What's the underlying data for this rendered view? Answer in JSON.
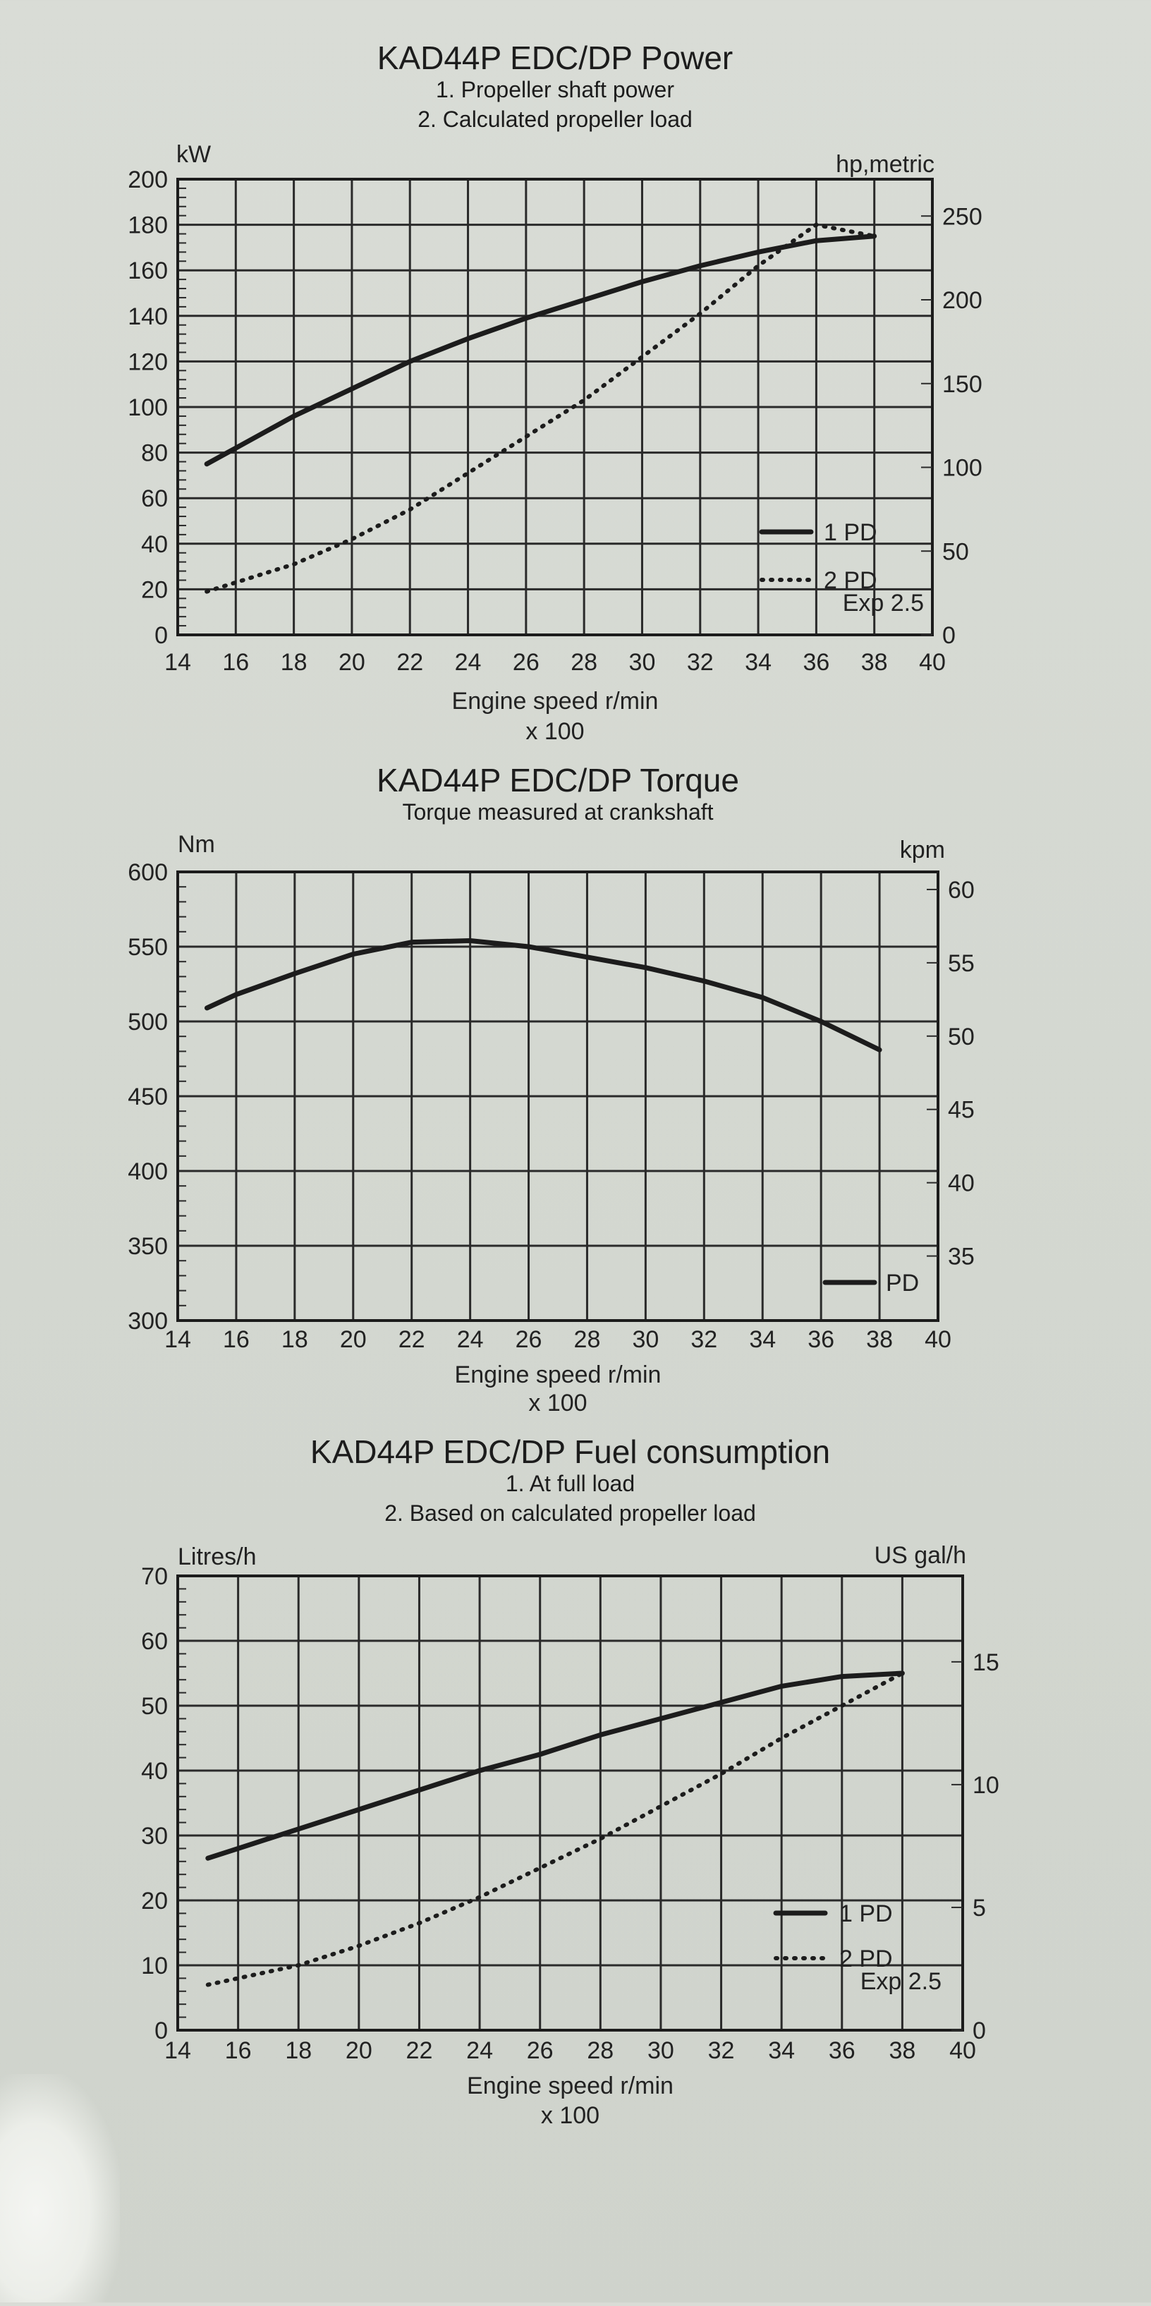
{
  "colors": {
    "ink": "#1c1c1c",
    "paper": "#d6d9d3"
  },
  "charts": [
    {
      "title": "KAD44P EDC/DP Power",
      "subtitle_lines": [
        "1. Propeller shaft power",
        "2. Calculated propeller load"
      ],
      "left_unit": "kW",
      "right_unit": "hp,metric",
      "x_ticks": [
        "14",
        "16",
        "18",
        "20",
        "22",
        "24",
        "26",
        "28",
        "30",
        "32",
        "34",
        "36",
        "38",
        "40"
      ],
      "y_left_ticks": [
        "0",
        "20",
        "40",
        "60",
        "80",
        "100",
        "120",
        "140",
        "160",
        "180",
        "200"
      ],
      "y_right_ticks": [
        "0",
        "50",
        "100",
        "150",
        "200",
        "250"
      ],
      "xlabel": "Engine speed r/min",
      "xlabel2": "x 100",
      "legend": [
        {
          "label": "1 PD",
          "style": "solid"
        },
        {
          "label": "2 PD",
          "style": "dotted"
        }
      ],
      "legend_note": "Exp 2.5"
    },
    {
      "title": "KAD44P EDC/DP Torque",
      "subtitle_lines": [
        "Torque measured at crankshaft"
      ],
      "left_unit": "Nm",
      "right_unit": "kpm",
      "x_ticks": [
        "14",
        "16",
        "18",
        "20",
        "22",
        "24",
        "26",
        "28",
        "30",
        "32",
        "34",
        "36",
        "38",
        "40"
      ],
      "y_left_ticks": [
        "300",
        "350",
        "400",
        "450",
        "500",
        "550",
        "600"
      ],
      "y_right_ticks": [
        "35",
        "40",
        "45",
        "50",
        "55",
        "60"
      ],
      "xlabel": "Engine speed r/min",
      "xlabel2": "x 100",
      "legend": [
        {
          "label": "PD",
          "style": "solid"
        }
      ],
      "legend_note": ""
    },
    {
      "title": "KAD44P EDC/DP Fuel consumption",
      "subtitle_lines": [
        "1. At full load",
        "2. Based on calculated propeller load"
      ],
      "left_unit": "Litres/h",
      "right_unit": "US gal/h",
      "x_ticks": [
        "14",
        "16",
        "18",
        "20",
        "22",
        "24",
        "26",
        "28",
        "30",
        "32",
        "34",
        "36",
        "38",
        "40"
      ],
      "y_left_ticks": [
        "0",
        "10",
        "20",
        "30",
        "40",
        "50",
        "60",
        "70"
      ],
      "y_right_ticks": [
        "0",
        "5",
        "10",
        "15"
      ],
      "xlabel": "Engine speed r/min",
      "xlabel2": "x 100",
      "legend": [
        {
          "label": "1 PD",
          "style": "solid"
        },
        {
          "label": "2 PD",
          "style": "dotted"
        }
      ],
      "legend_note": "Exp 2.5"
    }
  ],
  "chart_data": [
    {
      "type": "line",
      "title": "KAD44P EDC/DP Power",
      "xlabel": "Engine speed r/min x 100",
      "ylabel": "kW",
      "y2label": "hp,metric",
      "xlim": [
        14,
        40
      ],
      "ylim": [
        0,
        200
      ],
      "y2lim": [
        0,
        272
      ],
      "grid": true,
      "legend_position": "bottom-right",
      "series": [
        {
          "name": "1 PD",
          "style": "solid",
          "x": [
            15,
            16,
            18,
            20,
            22,
            24,
            26,
            28,
            30,
            32,
            34,
            36,
            38
          ],
          "y": [
            75,
            82,
            96,
            108,
            120,
            130,
            139,
            147,
            155,
            162,
            168,
            173,
            175
          ]
        },
        {
          "name": "2 PD",
          "style": "dotted",
          "x": [
            15,
            16,
            18,
            20,
            22,
            24,
            26,
            28,
            30,
            32,
            34,
            36,
            38
          ],
          "y": [
            19,
            23,
            31,
            42,
            55,
            71,
            87,
            103,
            122,
            141,
            162,
            180,
            175
          ]
        }
      ]
    },
    {
      "type": "line",
      "title": "KAD44P EDC/DP Torque",
      "xlabel": "Engine speed r/min x 100",
      "ylabel": "Nm",
      "y2label": "kpm",
      "xlim": [
        14,
        40
      ],
      "ylim": [
        300,
        600
      ],
      "y2lim": [
        30.6,
        61.2
      ],
      "grid": true,
      "legend_position": "bottom-right",
      "series": [
        {
          "name": "PD",
          "style": "solid",
          "x": [
            15,
            16,
            18,
            20,
            22,
            24,
            26,
            28,
            30,
            32,
            34,
            36,
            38
          ],
          "y": [
            509,
            518,
            532,
            545,
            553,
            554,
            550,
            543,
            536,
            527,
            516,
            500,
            481
          ]
        }
      ]
    },
    {
      "type": "line",
      "title": "KAD44P EDC/DP Fuel consumption",
      "xlabel": "Engine speed r/min x 100",
      "ylabel": "Litres/h",
      "y2label": "US gal/h",
      "xlim": [
        14,
        40
      ],
      "ylim": [
        0,
        70
      ],
      "y2lim": [
        0,
        18.5
      ],
      "grid": true,
      "legend_position": "bottom-right",
      "series": [
        {
          "name": "1 PD",
          "style": "solid",
          "x": [
            15,
            16,
            18,
            20,
            22,
            24,
            26,
            28,
            30,
            32,
            34,
            36,
            38
          ],
          "y": [
            26.5,
            28,
            31,
            34,
            37,
            40,
            42.5,
            45.5,
            48,
            50.5,
            53,
            54.5,
            55
          ]
        },
        {
          "name": "2 PD",
          "style": "dotted",
          "x": [
            15,
            16,
            18,
            20,
            22,
            24,
            26,
            28,
            30,
            32,
            34,
            36,
            38
          ],
          "y": [
            7,
            8,
            10,
            13,
            16.5,
            20.5,
            25,
            29.5,
            34.5,
            39.5,
            45,
            50,
            55
          ]
        }
      ]
    }
  ]
}
